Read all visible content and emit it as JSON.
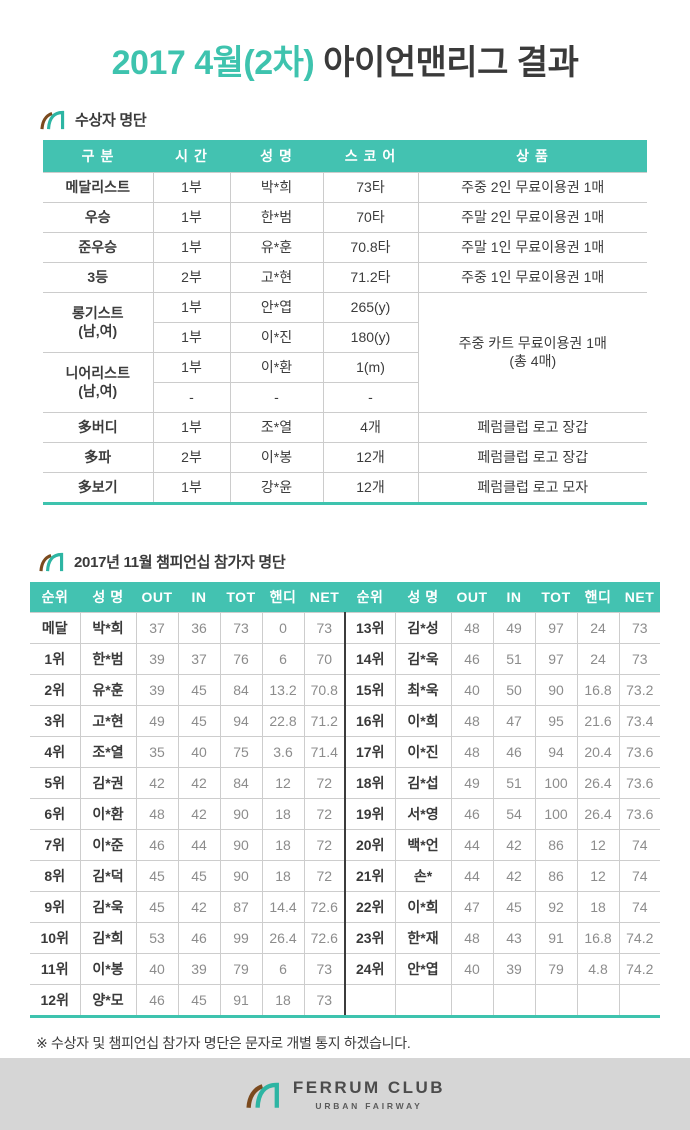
{
  "colors": {
    "accent_teal": "#3ec3ae",
    "header_teal": "#43c2b1",
    "brand_brown": "#7b4a1e",
    "footer_gray": "#d6d6d6"
  },
  "icons": {
    "section_marker": "ferrum-arc-logo-icon",
    "footer_marker": "ferrum-arc-logo-icon"
  },
  "title": {
    "highlight": "2017 4월(2차)",
    "rest": " 아이언맨리그 결과"
  },
  "winners": {
    "heading": "수상자 명단",
    "headers": [
      "구 분",
      "시 간",
      "성 명",
      "스 코 어",
      "상 품"
    ],
    "rows": {
      "r1": {
        "cat": "메달리스트",
        "time": "1부",
        "name": "박*희",
        "score": "73타",
        "prize": "주중 2인 무료이용권 1매"
      },
      "r2": {
        "cat": "우승",
        "time": "1부",
        "name": "한*범",
        "score": "70타",
        "prize": "주말 2인 무료이용권 1매"
      },
      "r3": {
        "cat": "준우승",
        "time": "1부",
        "name": "유*훈",
        "score": "70.8타",
        "prize": "주말 1인 무료이용권 1매"
      },
      "r4": {
        "cat": "3등",
        "time": "2부",
        "name": "고*현",
        "score": "71.2타",
        "prize": "주중 1인 무료이용권 1매"
      },
      "r5": {
        "cat": "롱기스트\n(남,여)",
        "time": "1부",
        "name": "안*엽",
        "score": "265(y)",
        "prize": "주중 카트 무료이용권 1매\n(총 4매)"
      },
      "r6": {
        "time": "1부",
        "name": "이*진",
        "score": "180(y)"
      },
      "r7": {
        "cat": "니어리스트\n(남,여)",
        "time": "1부",
        "name": "이*환",
        "score": "1(m)"
      },
      "r8": {
        "time": "-",
        "name": "-",
        "score": "-"
      },
      "r9": {
        "cat": "多버디",
        "time": "1부",
        "name": "조*열",
        "score": "4개",
        "prize": "페럼클럽 로고 장갑"
      },
      "r10": {
        "cat": "多파",
        "time": "2부",
        "name": "이*봉",
        "score": "12개",
        "prize": "페럼클럽 로고 장갑"
      },
      "r11": {
        "cat": "多보기",
        "time": "1부",
        "name": "강*윤",
        "score": "12개",
        "prize": "페럼클럽 로고 모자"
      }
    }
  },
  "championship": {
    "heading": "2017년 11월 챔피언십 참가자 명단",
    "headers": [
      "순위",
      "성 명",
      "OUT",
      "IN",
      "TOT",
      "핸디",
      "NET",
      "순위",
      "성 명",
      "OUT",
      "IN",
      "TOT",
      "핸디",
      "NET"
    ],
    "rows": [
      [
        "메달",
        "박*희",
        "37",
        "36",
        "73",
        "0",
        "73",
        "13위",
        "김*성",
        "48",
        "49",
        "97",
        "24",
        "73"
      ],
      [
        "1위",
        "한*범",
        "39",
        "37",
        "76",
        "6",
        "70",
        "14위",
        "김*욱",
        "46",
        "51",
        "97",
        "24",
        "73"
      ],
      [
        "2위",
        "유*훈",
        "39",
        "45",
        "84",
        "13.2",
        "70.8",
        "15위",
        "최*욱",
        "40",
        "50",
        "90",
        "16.8",
        "73.2"
      ],
      [
        "3위",
        "고*현",
        "49",
        "45",
        "94",
        "22.8",
        "71.2",
        "16위",
        "이*희",
        "48",
        "47",
        "95",
        "21.6",
        "73.4"
      ],
      [
        "4위",
        "조*열",
        "35",
        "40",
        "75",
        "3.6",
        "71.4",
        "17위",
        "이*진",
        "48",
        "46",
        "94",
        "20.4",
        "73.6"
      ],
      [
        "5위",
        "김*권",
        "42",
        "42",
        "84",
        "12",
        "72",
        "18위",
        "김*섭",
        "49",
        "51",
        "100",
        "26.4",
        "73.6"
      ],
      [
        "6위",
        "이*환",
        "48",
        "42",
        "90",
        "18",
        "72",
        "19위",
        "서*영",
        "46",
        "54",
        "100",
        "26.4",
        "73.6"
      ],
      [
        "7위",
        "이*준",
        "46",
        "44",
        "90",
        "18",
        "72",
        "20위",
        "백*언",
        "44",
        "42",
        "86",
        "12",
        "74"
      ],
      [
        "8위",
        "김*덕",
        "45",
        "45",
        "90",
        "18",
        "72",
        "21위",
        "손*",
        "44",
        "42",
        "86",
        "12",
        "74"
      ],
      [
        "9위",
        "김*욱",
        "45",
        "42",
        "87",
        "14.4",
        "72.6",
        "22위",
        "이*희",
        "47",
        "45",
        "92",
        "18",
        "74"
      ],
      [
        "10위",
        "김*희",
        "53",
        "46",
        "99",
        "26.4",
        "72.6",
        "23위",
        "한*재",
        "48",
        "43",
        "91",
        "16.8",
        "74.2"
      ],
      [
        "11위",
        "이*봉",
        "40",
        "39",
        "79",
        "6",
        "73",
        "24위",
        "안*엽",
        "40",
        "39",
        "79",
        "4.8",
        "74.2"
      ],
      [
        "12위",
        "양*모",
        "46",
        "45",
        "91",
        "18",
        "73",
        "",
        "",
        "",
        "",
        "",
        "",
        ""
      ]
    ]
  },
  "note": "※ 수상자 및 챔피언십 참가자 명단은 문자로 개별 통지 하겠습니다.",
  "footer": {
    "brand": "FERRUM CLUB",
    "tagline": "URBAN FAIRWAY"
  }
}
